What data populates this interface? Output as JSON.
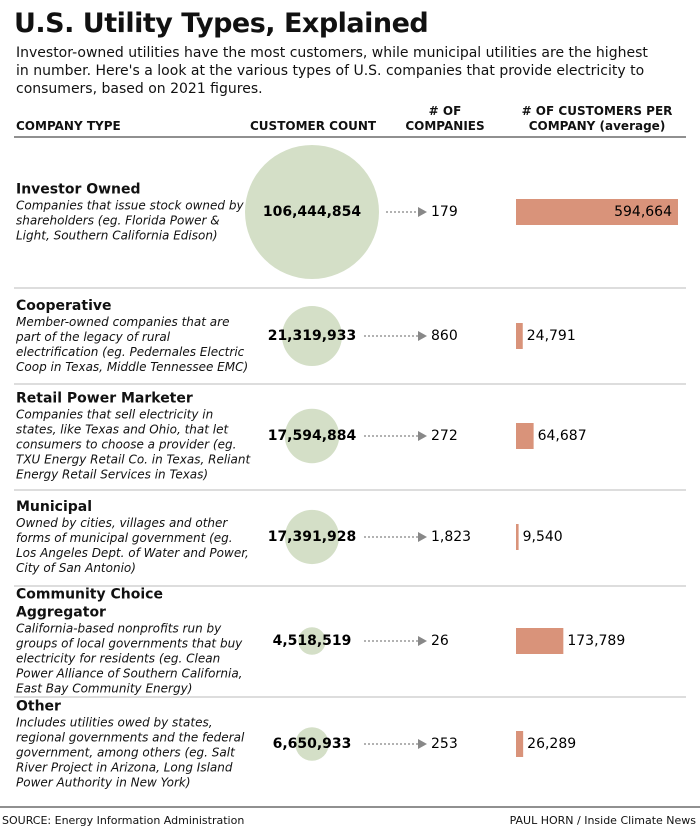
{
  "chart_data": {
    "type": "bubble-bar-table",
    "title": "U.S. Utility Types, Explained",
    "subtitle": "Investor-owned utilities have the most customers, while municipal utilities are the highest in number. Here's a look at the various types of U.S. companies that provide electricity to consumers, based on 2021 figures.",
    "category_header": "COMPANY TYPE",
    "categories": [
      "Investor Owned",
      "Cooperative",
      "Retail Power Marketer",
      "Municipal",
      "Community Choice Aggregator",
      "Other"
    ],
    "descriptions": [
      "Companies that issue stock owned by shareholders (eg. Florida Power & Light, Southern California Edison)",
      "Member-owned companies that are part of the legacy of rural electrification (eg. Pedernales Electric Coop in Texas, Middle Tennessee EMC)",
      "Companies that sell electricity in states, like Texas and Ohio, that let consumers to choose a provider (eg. TXU Energy Retail Co. in Texas, Reliant Energy Retail Services in Texas)",
      "Owned by cities, villages and other forms of municipal government (eg. Los Angeles Dept. of Water and Power, City of San Antonio)",
      "California-based nonprofits run by groups of local governments that buy electricity for residents (eg. Clean Power Alliance of Southern California, East Bay Community Energy)",
      "Includes utilities owed by states, regional governments and the federal government, among others (eg. Salt River Project in Arizona, Long Island Power Authority in New York)"
    ],
    "series": [
      {
        "name": "CUSTOMER COUNT",
        "color": "#d4dfc7",
        "values": [
          106444854,
          21319933,
          17594884,
          17391928,
          4518519,
          6650933
        ],
        "value_labels": [
          "106,444,854",
          "21,319,933",
          "17,594,884",
          "17,391,928",
          "4,518,519",
          "6,650,933"
        ]
      },
      {
        "name": "# OF COMPANIES",
        "values": [
          179,
          860,
          272,
          1823,
          26,
          253
        ],
        "value_labels": [
          "179",
          "860",
          "272",
          "1,823",
          "26",
          "253"
        ]
      },
      {
        "name": "# OF CUSTOMERS PER COMPANY (average)",
        "color": "#d9937a",
        "values": [
          594664,
          24791,
          64687,
          9540,
          173789,
          26289
        ],
        "value_labels": [
          "594,664",
          "24,791",
          "64,687",
          "9,540",
          "173,789",
          "26,289"
        ]
      }
    ],
    "source": "SOURCE: Energy Information Administration",
    "credit": "PAUL HORN / Inside Climate News"
  }
}
